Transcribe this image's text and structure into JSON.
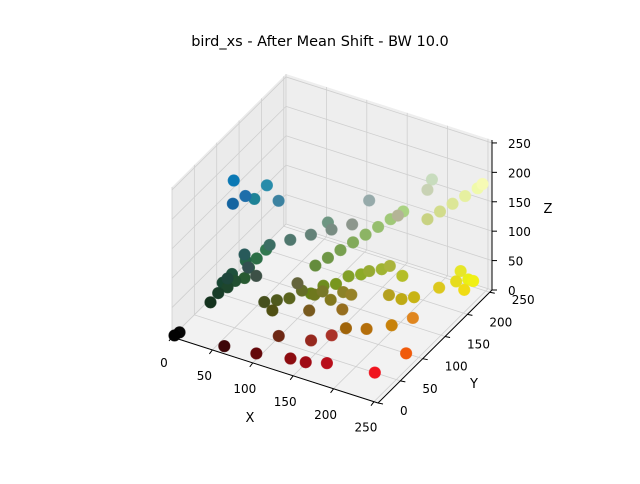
{
  "chart_data": {
    "type": "scatter3d",
    "title": "bird_xs - After Mean Shift - BW 10.0",
    "xlabel": "X",
    "ylabel": "Y",
    "zlabel": "Z",
    "xlim": [
      0,
      255
    ],
    "ylim": [
      0,
      255
    ],
    "zlim": [
      0,
      255
    ],
    "x_ticks": [
      0,
      50,
      100,
      150,
      200,
      250
    ],
    "y_ticks": [
      0,
      50,
      100,
      150,
      200,
      250
    ],
    "z_ticks": [
      0,
      50,
      100,
      150,
      200,
      250
    ],
    "grid": true,
    "points": [
      [
        2,
        2,
        2
      ],
      [
        6,
        6,
        6
      ],
      [
        62,
        5,
        8
      ],
      [
        100,
        8,
        10
      ],
      [
        140,
        12,
        16
      ],
      [
        160,
        10,
        20
      ],
      [
        184,
        14,
        26
      ],
      [
        240,
        20,
        30
      ],
      [
        110,
        40,
        20
      ],
      [
        150,
        40,
        30
      ],
      [
        170,
        50,
        40
      ],
      [
        20,
        50,
        30
      ],
      [
        24,
        60,
        40
      ],
      [
        30,
        70,
        45
      ],
      [
        34,
        80,
        50
      ],
      [
        40,
        90,
        50
      ],
      [
        30,
        70,
        60
      ],
      [
        40,
        100,
        60
      ],
      [
        44,
        110,
        70
      ],
      [
        50,
        120,
        80
      ],
      [
        36,
        100,
        70
      ],
      [
        30,
        80,
        60
      ],
      [
        24,
        70,
        50
      ],
      [
        240,
        90,
        10
      ],
      [
        224,
        134,
        30
      ],
      [
        200,
        130,
        10
      ],
      [
        180,
        110,
        10
      ],
      [
        160,
        100,
        10
      ],
      [
        150,
        110,
        30
      ],
      [
        120,
        90,
        30
      ],
      [
        100,
        100,
        60
      ],
      [
        180,
        160,
        30
      ],
      [
        190,
        170,
        20
      ],
      [
        200,
        180,
        20
      ],
      [
        220,
        200,
        30
      ],
      [
        240,
        220,
        20
      ],
      [
        230,
        220,
        30
      ],
      [
        230,
        230,
        40
      ],
      [
        234,
        240,
        20
      ],
      [
        240,
        240,
        20
      ],
      [
        150,
        130,
        40
      ],
      [
        140,
        130,
        40
      ],
      [
        130,
        120,
        30
      ],
      [
        120,
        120,
        40
      ],
      [
        110,
        120,
        30
      ],
      [
        100,
        110,
        40
      ],
      [
        90,
        100,
        30
      ],
      [
        80,
        90,
        30
      ],
      [
        80,
        80,
        20
      ],
      [
        70,
        80,
        30
      ],
      [
        100,
        130,
        20
      ],
      [
        110,
        140,
        30
      ],
      [
        120,
        150,
        30
      ],
      [
        130,
        160,
        40
      ],
      [
        140,
        170,
        40
      ],
      [
        150,
        170,
        50
      ],
      [
        160,
        180,
        50
      ],
      [
        170,
        180,
        60
      ],
      [
        180,
        190,
        40
      ],
      [
        100,
        140,
        60
      ],
      [
        110,
        150,
        70
      ],
      [
        120,
        160,
        80
      ],
      [
        130,
        170,
        90
      ],
      [
        140,
        180,
        100
      ],
      [
        150,
        190,
        110
      ],
      [
        160,
        200,
        120
      ],
      [
        170,
        210,
        130
      ],
      [
        200,
        210,
        130
      ],
      [
        210,
        220,
        140
      ],
      [
        220,
        230,
        150
      ],
      [
        230,
        240,
        160
      ],
      [
        240,
        250,
        170
      ],
      [
        246,
        250,
        180
      ],
      [
        60,
        80,
        70
      ],
      [
        50,
        80,
        80
      ],
      [
        40,
        90,
        90
      ],
      [
        60,
        110,
        100
      ],
      [
        80,
        120,
        110
      ],
      [
        100,
        130,
        120
      ],
      [
        20,
        100,
        160
      ],
      [
        30,
        110,
        170
      ],
      [
        10,
        120,
        180
      ],
      [
        60,
        130,
        160
      ],
      [
        40,
        140,
        170
      ],
      [
        30,
        130,
        150
      ],
      [
        110,
        150,
        130
      ],
      [
        120,
        140,
        130
      ],
      [
        140,
        150,
        140
      ],
      [
        180,
        180,
        150
      ],
      [
        150,
        170,
        170
      ],
      [
        200,
        210,
        180
      ],
      [
        200,
        220,
        190
      ]
    ]
  }
}
